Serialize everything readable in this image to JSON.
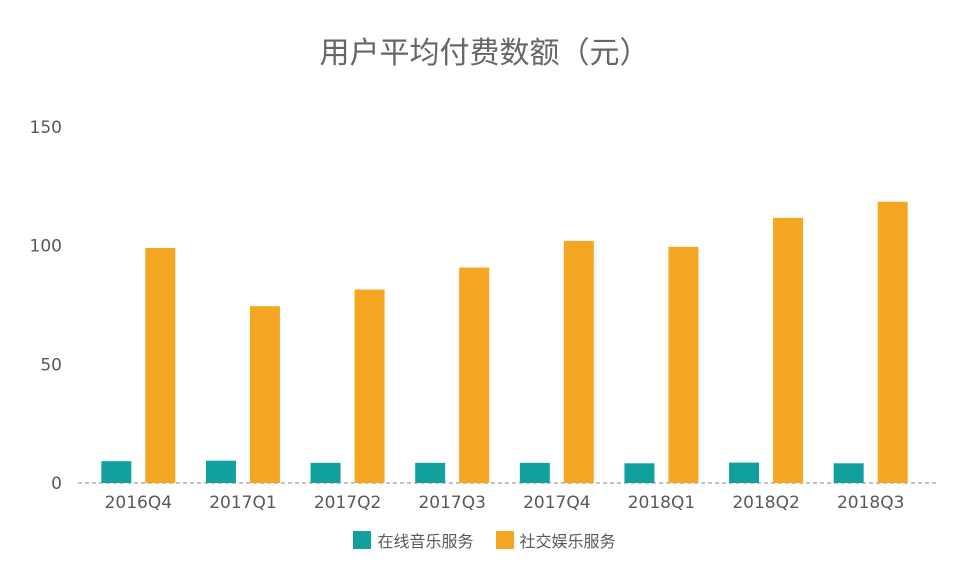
{
  "chart_data": {
    "type": "bar",
    "title": "用户平均付费数额（元）",
    "categories": [
      "2016Q4",
      "2017Q1",
      "2017Q2",
      "2017Q3",
      "2017Q4",
      "2018Q1",
      "2018Q2",
      "2018Q3"
    ],
    "series": [
      {
        "name": "在线音乐服务",
        "color": "#12A09F",
        "values": [
          9.2,
          9.4,
          8.5,
          8.5,
          8.5,
          8.3,
          8.6,
          8.3
        ]
      },
      {
        "name": "社交娱乐服务",
        "color": "#F5A623",
        "values": [
          99,
          74.5,
          81.5,
          90.8,
          102,
          99.5,
          111.7,
          118.5
        ]
      }
    ],
    "yticks": [
      0,
      50,
      100,
      150
    ],
    "ylim": [
      0,
      150
    ],
    "legend_position": "bottom",
    "grid": false
  }
}
